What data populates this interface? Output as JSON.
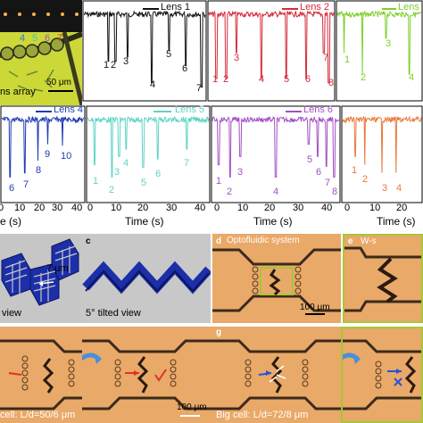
{
  "colors": {
    "lens1": "#111111",
    "lens2": "#d42b3a",
    "lens3": "#7fcf2c",
    "lens4": "#1f3bb3",
    "lens5": "#5fd3c6",
    "lens6": "#a34fc4",
    "lens7": "#e8793a",
    "tissue": "#e9a968",
    "channel": "#3b2a1c",
    "arrow": "#4a8fd8",
    "annot_red": "#e0302a",
    "annot_blue": "#2a50d8",
    "micro_green": "#a7c63a",
    "gray_bg": "#c7c7c7"
  },
  "top_left": {
    "dots_count": 6,
    "numbers": [
      "4",
      "5",
      "6",
      "7"
    ],
    "label": "ns array",
    "scale": "50 μm"
  },
  "traces": {
    "lens1": {
      "legend": "Lens 1",
      "peaks": [
        "1",
        "2",
        "3",
        "4",
        "5",
        "6",
        "7"
      ]
    },
    "lens2": {
      "legend": "Lens 2",
      "peaks": [
        "1",
        "2",
        "3",
        "4",
        "5",
        "6",
        "7",
        "8"
      ]
    },
    "lens3": {
      "legend": "Lens",
      "peaks": [
        "1",
        "2",
        "3",
        "4"
      ]
    },
    "lens4": {
      "legend": "Lens 4",
      "peaks": [
        "6",
        "7",
        "8",
        "9",
        "10"
      ]
    },
    "lens5": {
      "legend": "Lens 5",
      "peaks": [
        "1",
        "2",
        "3",
        "4",
        "5",
        "6",
        "7"
      ]
    },
    "lens6": {
      "legend": "Lens 6",
      "peaks": [
        "1",
        "2",
        "3",
        "4",
        "5",
        "6",
        "7",
        "8"
      ]
    },
    "lens7": {
      "legend": "",
      "peaks": [
        "1",
        "2",
        "3",
        "4"
      ]
    }
  },
  "axes": {
    "xlabel": "Time (s)",
    "xlabel_cut": "e (s)",
    "ticks": [
      "0",
      "10",
      "20",
      "30",
      "40"
    ],
    "ticks_cut": [
      "0",
      "10",
      "20",
      "30",
      "40"
    ],
    "ticks_last": [
      "0",
      "10",
      "20"
    ]
  },
  "panels": {
    "b_text": "view",
    "b_dim": "7 μm",
    "c_letter": "c",
    "c_text": "5° tilted view",
    "d_letter": "d",
    "d_text": "Optofluidic system",
    "d_scale": "100 μm",
    "e_letter": "e",
    "e_text": "W-s",
    "f_scale": "100 μm",
    "f_text": "cell: L/d=50/6 μm",
    "g_letter": "g",
    "g_text": "Big cell: L/d=72/8 μm"
  }
}
